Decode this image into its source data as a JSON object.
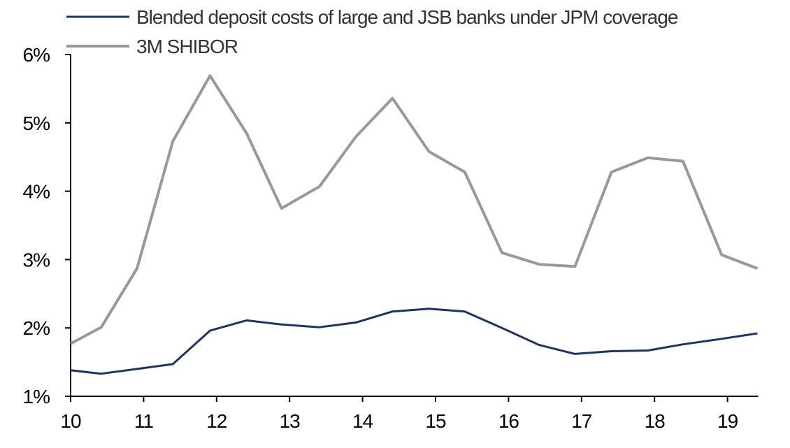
{
  "chart_data": {
    "type": "line",
    "title": "",
    "xlabel": "",
    "ylabel": "",
    "xlim": [
      10,
      19.42
    ],
    "ylim": [
      1,
      6
    ],
    "x_ticks": [
      "10",
      "11",
      "12",
      "13",
      "14",
      "15",
      "16",
      "17",
      "18",
      "19"
    ],
    "y_ticks": [
      "1%",
      "2%",
      "3%",
      "4%",
      "5%",
      "6%"
    ],
    "grid": false,
    "legend_position": "top",
    "x": [
      10.0,
      10.42,
      10.91,
      11.4,
      11.91,
      12.41,
      12.89,
      13.41,
      13.91,
      14.41,
      14.91,
      15.4,
      15.91,
      16.42,
      16.91,
      17.41,
      17.91,
      18.39,
      18.92,
      19.41
    ],
    "series": [
      {
        "name": "Blended deposit costs of large and JSB banks under JPM coverage",
        "color": "#1f3460",
        "values": [
          1.38,
          1.33,
          1.4,
          1.47,
          1.96,
          2.11,
          2.05,
          2.01,
          2.08,
          2.24,
          2.28,
          2.24,
          2.0,
          1.75,
          1.62,
          1.66,
          1.67,
          1.76,
          1.84,
          1.92
        ]
      },
      {
        "name": "3M SHIBOR",
        "color": "#999999",
        "values": [
          1.77,
          2.01,
          2.87,
          4.73,
          5.69,
          4.85,
          3.75,
          4.07,
          4.8,
          5.36,
          4.58,
          4.28,
          3.1,
          2.93,
          2.9,
          4.28,
          4.49,
          4.44,
          3.07,
          2.87
        ]
      }
    ]
  }
}
